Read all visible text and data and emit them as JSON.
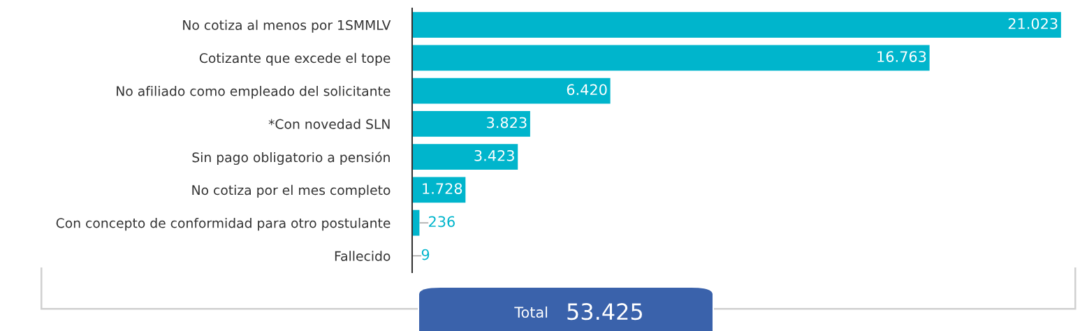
{
  "chart_data": {
    "type": "bar",
    "orientation": "horizontal",
    "categories": [
      "No cotiza al menos por 1SMMLV",
      "Cotizante que excede el tope",
      "No afiliado como empleado del solicitante",
      "*Con novedad SLN",
      "Sin pago obligatorio a pensión",
      "No cotiza por el mes completo",
      "Con concepto de conformidad para otro postulante",
      "Fallecido"
    ],
    "values": [
      21023,
      16763,
      6420,
      3823,
      3423,
      1728,
      236,
      9
    ],
    "value_labels": [
      "21.023",
      "16.763",
      "6.420",
      "3.823",
      "3.423",
      "1.728",
      "236",
      "9"
    ],
    "color": "#00b5cc",
    "annotations": [
      "Total",
      "53.425"
    ],
    "grid": false,
    "legend": false
  }
}
